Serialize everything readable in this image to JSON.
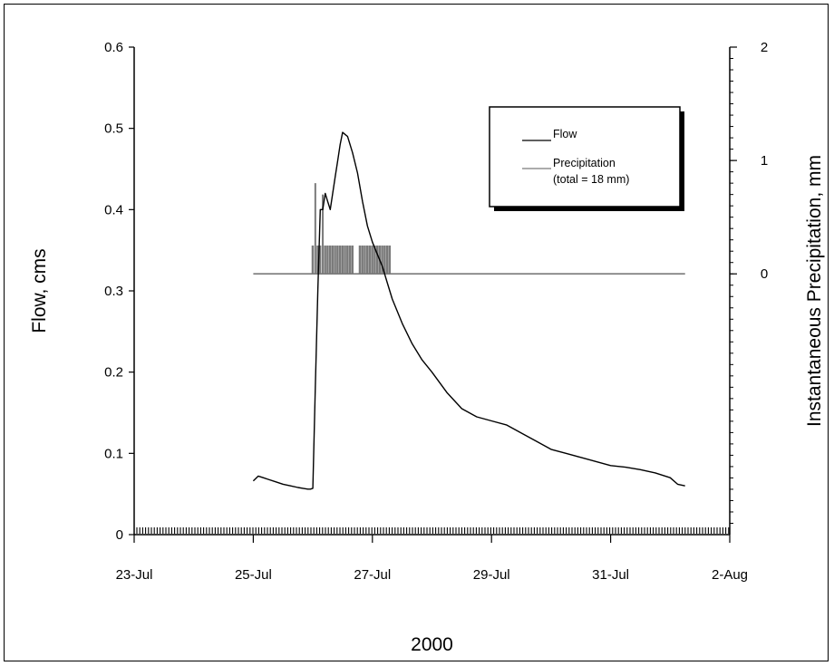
{
  "chart_data": {
    "type": "line",
    "xlabel": "2000",
    "ylabel": "Flow, cms",
    "y2label": "Instantaneous Precipitation, mm",
    "x_ticks": [
      "23-Jul",
      "25-Jul",
      "27-Jul",
      "29-Jul",
      "31-Jul",
      "2-Aug"
    ],
    "x_range": [
      "2000-07-23",
      "2000-08-02"
    ],
    "ylim": [
      0,
      0.6
    ],
    "y_ticks": [
      "0",
      "0.1",
      "0.2",
      "0.3",
      "0.4",
      "0.5",
      "0.6"
    ],
    "y2lim": [
      -2.3,
      2
    ],
    "y2_ticks": [
      "0",
      "1",
      "2"
    ],
    "legend": {
      "position": "top-right",
      "entries": [
        {
          "label": "Flow",
          "color": "#000000"
        },
        {
          "label": "Precipitation",
          "sublabel": "(total = 18 mm)",
          "color": "#7a7a7a"
        }
      ]
    },
    "series": [
      {
        "name": "Flow",
        "color": "#000000",
        "x": [
          "2000-07-25 00:00",
          "2000-07-25 02:00",
          "2000-07-25 04:00",
          "2000-07-25 06:00",
          "2000-07-25 09:00",
          "2000-07-25 12:00",
          "2000-07-25 15:00",
          "2000-07-25 18:00",
          "2000-07-25 20:00",
          "2000-07-25 22:00",
          "2000-07-25 23:00",
          "2000-07-26 00:00",
          "2000-07-26 01:00",
          "2000-07-26 02:00",
          "2000-07-26 03:00",
          "2000-07-26 04:00",
          "2000-07-26 05:00",
          "2000-07-26 06:00",
          "2000-07-26 07:00",
          "2000-07-26 08:00",
          "2000-07-26 09:00",
          "2000-07-26 10:00",
          "2000-07-26 11:00",
          "2000-07-26 12:00",
          "2000-07-26 14:00",
          "2000-07-26 16:00",
          "2000-07-26 18:00",
          "2000-07-26 20:00",
          "2000-07-26 22:00",
          "2000-07-27 00:00",
          "2000-07-27 02:00",
          "2000-07-27 04:00",
          "2000-07-27 06:00",
          "2000-07-27 08:00",
          "2000-07-27 12:00",
          "2000-07-27 16:00",
          "2000-07-27 20:00",
          "2000-07-28 00:00",
          "2000-07-28 06:00",
          "2000-07-28 12:00",
          "2000-07-28 18:00",
          "2000-07-29 00:00",
          "2000-07-29 06:00",
          "2000-07-29 12:00",
          "2000-07-29 18:00",
          "2000-07-30 00:00",
          "2000-07-30 06:00",
          "2000-07-30 12:00",
          "2000-07-30 18:00",
          "2000-07-31 00:00",
          "2000-07-31 06:00",
          "2000-07-31 12:00",
          "2000-07-31 18:00",
          "2000-08-01 00:00",
          "2000-08-01 03:00",
          "2000-08-01 06:00"
        ],
        "y": [
          0.066,
          0.072,
          0.07,
          0.068,
          0.065,
          0.062,
          0.06,
          0.058,
          0.057,
          0.056,
          0.056,
          0.057,
          0.18,
          0.3,
          0.4,
          0.4,
          0.42,
          0.41,
          0.4,
          0.42,
          0.44,
          0.46,
          0.48,
          0.495,
          0.49,
          0.47,
          0.445,
          0.41,
          0.38,
          0.36,
          0.345,
          0.33,
          0.31,
          0.29,
          0.26,
          0.235,
          0.215,
          0.2,
          0.175,
          0.155,
          0.145,
          0.14,
          0.135,
          0.125,
          0.115,
          0.105,
          0.1,
          0.095,
          0.09,
          0.085,
          0.083,
          0.08,
          0.076,
          0.07,
          0.062,
          0.06
        ]
      },
      {
        "name": "Precipitation",
        "color": "#7a7a7a",
        "axis": "y2",
        "baseline": 0,
        "x": [
          "2000-07-26 00:00",
          "2000-07-26 01:00",
          "2000-07-26 02:00",
          "2000-07-26 03:00",
          "2000-07-26 04:00",
          "2000-07-26 05:00",
          "2000-07-26 06:00",
          "2000-07-26 07:00",
          "2000-07-26 08:00",
          "2000-07-26 09:00",
          "2000-07-26 10:00",
          "2000-07-26 11:00",
          "2000-07-26 12:00",
          "2000-07-26 13:00",
          "2000-07-26 14:00",
          "2000-07-26 15:00",
          "2000-07-26 16:00",
          "2000-07-26 19:00",
          "2000-07-26 20:00",
          "2000-07-26 21:00",
          "2000-07-26 22:00",
          "2000-07-26 23:00",
          "2000-07-27 00:00",
          "2000-07-27 01:00",
          "2000-07-27 02:00",
          "2000-07-27 03:00",
          "2000-07-27 04:00",
          "2000-07-27 05:00",
          "2000-07-27 06:00",
          "2000-07-27 07:00"
        ],
        "y": [
          0.25,
          0.8,
          0.25,
          0.25,
          0.7,
          0.25,
          0.25,
          0.25,
          0.25,
          0.25,
          0.25,
          0.25,
          0.25,
          0.25,
          0.25,
          0.25,
          0.25,
          0.25,
          0.25,
          0.25,
          0.25,
          0.25,
          0.25,
          0.25,
          0.25,
          0.25,
          0.25,
          0.25,
          0.25,
          0.25
        ]
      }
    ]
  }
}
